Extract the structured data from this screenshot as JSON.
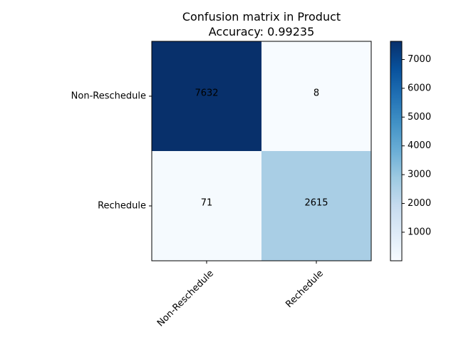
{
  "chart_data": {
    "type": "heatmap",
    "title": "Confusion matrix in Product",
    "subtitle": "Accuracy: 0.99235",
    "row_labels": [
      "Non-Reschedule",
      "Rechedule"
    ],
    "col_labels": [
      "Non-Reschedule",
      "Rechedule"
    ],
    "matrix": [
      [
        7632,
        8
      ],
      [
        71,
        2615
      ]
    ],
    "colormap": "Blues",
    "colorbar": {
      "min": 8,
      "max": 7632,
      "ticks": [
        1000,
        2000,
        3000,
        4000,
        5000,
        6000,
        7000
      ],
      "tick_labels": [
        "1000",
        "2000",
        "3000",
        "4000",
        "5000",
        "6000",
        "7000"
      ]
    },
    "grid": false
  }
}
